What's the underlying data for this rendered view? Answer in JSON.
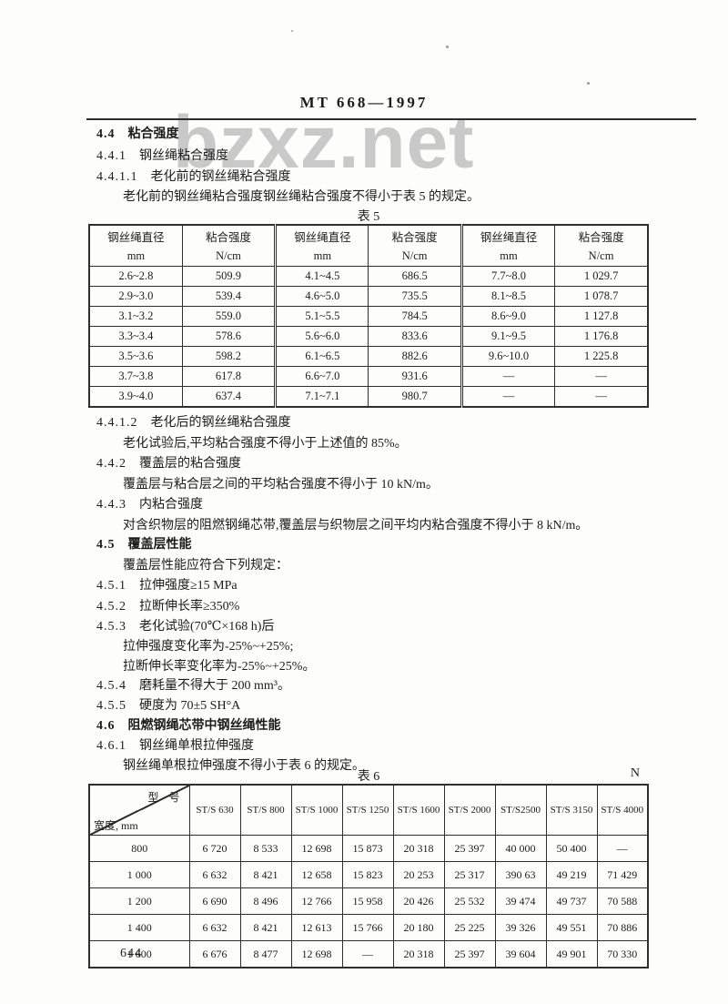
{
  "doc": {
    "standard_number": "MT 668—1997",
    "page_number": "644",
    "watermark": "bzxz.net"
  },
  "clauses": [
    {
      "num": "4.4",
      "text": "粘合强度"
    },
    {
      "num": "4.4.1",
      "text": "钢丝绳粘合强度"
    },
    {
      "num": "4.4.1.1",
      "text": "老化前的钢丝绳粘合强度"
    },
    {
      "num": "",
      "text": "老化前的钢丝绳粘合强度钢丝绳粘合强度不得小于表 5 的规定。"
    },
    {
      "num": "4.4.1.2",
      "text": "老化后的钢丝绳粘合强度"
    },
    {
      "num": "",
      "text": "老化试验后,平均粘合强度不得小于上述值的 85%。"
    },
    {
      "num": "4.4.2",
      "text": "覆盖层的粘合强度"
    },
    {
      "num": "",
      "text": "覆盖层与粘合层之间的平均粘合强度不得小于 10 kN/m。"
    },
    {
      "num": "4.4.3",
      "text": "内粘合强度"
    },
    {
      "num": "",
      "text": "对含织物层的阻燃钢绳芯带,覆盖层与织物层之间平均内粘合强度不得小于 8 kN/m。"
    },
    {
      "num": "4.5",
      "text": "覆盖层性能"
    },
    {
      "num": "",
      "text": "覆盖层性能应符合下列规定："
    },
    {
      "num": "4.5.1",
      "text": "拉伸强度≥15 MPa"
    },
    {
      "num": "4.5.2",
      "text": "拉断伸长率≥350%"
    },
    {
      "num": "4.5.3",
      "text": "老化试验(70℃×168 h)后"
    },
    {
      "num": "",
      "text": "拉伸强度变化率为-25%~+25%;"
    },
    {
      "num": "",
      "text": "拉断伸长率变化率为-25%~+25%。"
    },
    {
      "num": "4.5.4",
      "text": "磨耗量不得大于 200 mm³。"
    },
    {
      "num": "4.5.5",
      "text": "硬度为 70±5 SH°A"
    },
    {
      "num": "4.6",
      "text": "阻燃钢绳芯带中钢丝绳性能"
    },
    {
      "num": "4.6.1",
      "text": "钢丝绳单根拉伸强度"
    },
    {
      "num": "",
      "text": "钢丝绳单根拉伸强度不得小于表 6 的规定。"
    }
  ],
  "table5": {
    "caption": "表 5",
    "col_headers": [
      {
        "title": "钢丝绳直径",
        "unit": "mm"
      },
      {
        "title": "粘合强度",
        "unit": "N/cm"
      },
      {
        "title": "钢丝绳直径",
        "unit": "mm"
      },
      {
        "title": "粘合强度",
        "unit": "N/cm"
      },
      {
        "title": "钢丝绳直径",
        "unit": "mm"
      },
      {
        "title": "粘合强度",
        "unit": "N/cm"
      }
    ],
    "rows": [
      [
        "2.6~2.8",
        "509.9",
        "4.1~4.5",
        "686.5",
        "7.7~8.0",
        "1 029.7"
      ],
      [
        "2.9~3.0",
        "539.4",
        "4.6~5.0",
        "735.5",
        "8.1~8.5",
        "1 078.7"
      ],
      [
        "3.1~3.2",
        "559.0",
        "5.1~5.5",
        "784.5",
        "8.6~9.0",
        "1 127.8"
      ],
      [
        "3.3~3.4",
        "578.6",
        "5.6~6.0",
        "833.6",
        "9.1~9.5",
        "1 176.8"
      ],
      [
        "3.5~3.6",
        "598.2",
        "6.1~6.5",
        "882.6",
        "9.6~10.0",
        "1 225.8"
      ],
      [
        "3.7~3.8",
        "617.8",
        "6.6~7.0",
        "931.6",
        "—",
        "—"
      ],
      [
        "3.9~4.0",
        "637.4",
        "7.1~7.1",
        "980.7",
        "—",
        "—"
      ]
    ]
  },
  "table6": {
    "caption": "表 6",
    "unit_label": "N",
    "corner_top": "型 号",
    "corner_bottom": "宽度, mm",
    "columns": [
      "ST/S 630",
      "ST/S 800",
      "ST/S 1000",
      "ST/S 1250",
      "ST/S 1600",
      "ST/S 2000",
      "ST/S2500",
      "ST/S 3150",
      "ST/S 4000"
    ],
    "rows": [
      [
        "800",
        "6 720",
        "8 533",
        "12 698",
        "15 873",
        "20 318",
        "25 397",
        "40 000",
        "50 400",
        "—"
      ],
      [
        "1 000",
        "6 632",
        "8 421",
        "12 658",
        "15 823",
        "20 253",
        "25 317",
        "390 63",
        "49 219",
        "71 429"
      ],
      [
        "1 200",
        "6 690",
        "8 496",
        "12 766",
        "15 958",
        "20 426",
        "25 532",
        "39 474",
        "49 737",
        "70 588"
      ],
      [
        "1 400",
        "6 632",
        "8 421",
        "12 613",
        "15 766",
        "20 180",
        "25 225",
        "39 326",
        "49 551",
        "70 886"
      ],
      [
        "1 600",
        "6 676",
        "8 477",
        "12 698",
        "—",
        "20 318",
        "25 397",
        "39 604",
        "49 901",
        "70 330"
      ]
    ]
  }
}
